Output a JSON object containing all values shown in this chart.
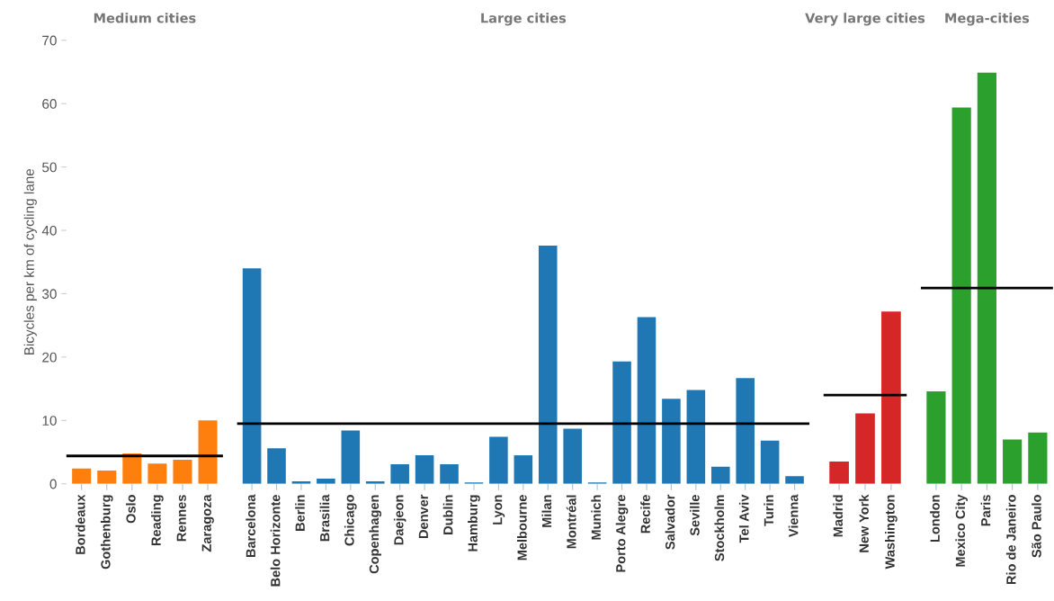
{
  "chart_data": [
    {
      "type": "bar",
      "title": "Medium cities",
      "ylabel": "Bicycles per km of cycling lane",
      "categories": [
        "Bordeaux",
        "Gothenburg",
        "Oslo",
        "Reading",
        "Rennes",
        "Zaragoza"
      ],
      "values": [
        2.4,
        2.1,
        4.8,
        3.2,
        3.8,
        10.0
      ],
      "color": "#ff7f0e",
      "ref_lines": [
        {
          "axis": "y",
          "value": 4.4,
          "color": "#000000"
        }
      ],
      "ylim": [
        0,
        70
      ],
      "yticks": [
        0,
        10,
        20,
        30,
        40,
        50,
        60,
        70
      ],
      "grid": false,
      "legend": false
    },
    {
      "type": "bar",
      "title": "Large cities",
      "categories": [
        "Barcelona",
        "Belo Horizonte",
        "Berlin",
        "Brasilia",
        "Chicago",
        "Copenhagen",
        "Daejeon",
        "Denver",
        "Dublin",
        "Hamburg",
        "Lyon",
        "Melbourne",
        "Milan",
        "Montréal",
        "Munich",
        "Porto Alegre",
        "Recife",
        "Salvador",
        "Seville",
        "Stockholm",
        "Tel Aviv",
        "Turin",
        "Vienna"
      ],
      "values": [
        34.0,
        5.6,
        0.4,
        0.8,
        8.4,
        0.4,
        3.1,
        4.5,
        3.1,
        0.2,
        7.4,
        4.5,
        37.6,
        8.7,
        0.2,
        19.3,
        26.3,
        13.4,
        14.8,
        2.7,
        16.7,
        6.8,
        1.2
      ],
      "color": "#1f77b4",
      "ref_lines": [
        {
          "axis": "y",
          "value": 9.5,
          "color": "#000000"
        }
      ],
      "ylim": [
        0,
        70
      ],
      "tick_labels": "x",
      "grid": false,
      "legend": false
    },
    {
      "type": "bar",
      "title": "Very large cities",
      "categories": [
        "Madrid",
        "New York",
        "Washington"
      ],
      "values": [
        3.5,
        11.1,
        27.2
      ],
      "color": "#d62728",
      "ref_lines": [
        {
          "axis": "y",
          "value": 14.0,
          "color": "#000000"
        }
      ],
      "ylim": [
        0,
        70
      ],
      "tick_labels": "x",
      "grid": false,
      "legend": false
    },
    {
      "type": "bar",
      "title": "Mega-cities",
      "categories": [
        "London",
        "Mexico City",
        "Paris",
        "Rio de Janeiro",
        "São Paulo"
      ],
      "values": [
        14.6,
        59.4,
        64.9,
        7.0,
        8.1
      ],
      "color": "#2ca02c",
      "ref_lines": [
        {
          "axis": "y",
          "value": 30.9,
          "color": "#000000"
        }
      ],
      "ylim": [
        0,
        70
      ],
      "tick_labels": "x",
      "grid": false,
      "legend": false
    }
  ]
}
